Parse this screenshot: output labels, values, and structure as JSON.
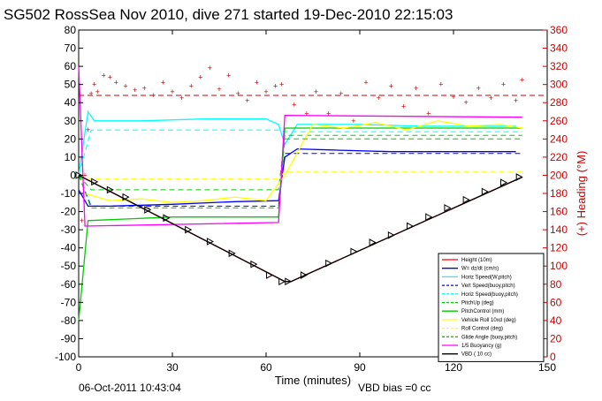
{
  "chart_data": {
    "type": "line",
    "title": "SG502 RossSea Nov 2010, dive 271 started 19-Dec-2010 22:15:03",
    "xlabel": "Time (minutes)",
    "ylabel_right": "(+) Heading (°M)",
    "xlim": [
      0,
      150
    ],
    "ylim": [
      -100,
      80
    ],
    "ylim_right": [
      0,
      360
    ],
    "x_ticks": [
      "0",
      "30",
      "60",
      "90",
      "120",
      "150"
    ],
    "y_ticks": [
      "80",
      "70",
      "60",
      "50",
      "40",
      "30",
      "20",
      "10",
      "0",
      "-10",
      "-20",
      "-30",
      "-40",
      "-50",
      "-60",
      "-70",
      "-80",
      "-90",
      "-100"
    ],
    "y_ticks_right": [
      "360",
      "340",
      "320",
      "300",
      "280",
      "260",
      "240",
      "220",
      "200",
      "180",
      "160",
      "140",
      "120",
      "100",
      "80",
      "60",
      "40",
      "20",
      "0"
    ],
    "footer_left": "06-Oct-2011 10:43:04",
    "footer_right": "VBD bias =0 cc",
    "grid": "none",
    "legend_position": "bottom-right",
    "legend": [
      {
        "name": "Height (10m)",
        "color": "#ff0000",
        "style": "solid"
      },
      {
        "name": "W= dz/dt (cm/s)",
        "color": "#0000ff",
        "style": "solid"
      },
      {
        "name": "Horiz Speed(W,pitch)",
        "color": "#00ffff",
        "style": "solid"
      },
      {
        "name": "Vert Speed(buoy,pitch)",
        "color": "#0000ff",
        "style": "dashed"
      },
      {
        "name": "Horiz Speed(buoy,pitch)",
        "color": "#00ffff",
        "style": "dashed"
      },
      {
        "name": "PitchUp (deg)",
        "color": "#00cc00",
        "style": "dashed"
      },
      {
        "name": "PitchControl (mm)",
        "color": "#00cc00",
        "style": "solid"
      },
      {
        "name": "Vehicle Roll 10xd (deg)",
        "color": "#ffff00",
        "style": "solid"
      },
      {
        "name": "Roll Control (deg)",
        "color": "#ffff00",
        "style": "dashed"
      },
      {
        "name": "Glide Angle (buoy,pitch)",
        "color": "#00cc00",
        "style": "dashed"
      },
      {
        "name": "1/5 Buoyancy (g)",
        "color": "#ff00ff",
        "style": "solid"
      },
      {
        "name": "VBD ( 10 cc)",
        "color": "#000000",
        "style": "solid"
      }
    ],
    "series": [
      {
        "name": "Height (10m)",
        "color": "#ff0000",
        "style": "solid",
        "x": [
          0,
          66,
          68,
          142
        ],
        "y": [
          0,
          -58.5,
          -58.5,
          -1
        ]
      },
      {
        "name": "W= dz/dt (cm/s)",
        "color": "#0000ff",
        "style": "solid",
        "x": [
          0,
          3,
          10,
          30,
          50,
          64,
          66,
          70,
          80,
          100,
          120,
          140
        ],
        "y": [
          -8,
          -17,
          -17,
          -16,
          -14.5,
          -14,
          10,
          14.5,
          14,
          13,
          13,
          13
        ]
      },
      {
        "name": "Horiz Speed(W,pitch)",
        "color": "#00ffff",
        "style": "solid",
        "x": [
          0,
          3,
          5,
          20,
          40,
          60,
          64,
          66,
          70,
          90,
          110,
          140
        ],
        "y": [
          0,
          35,
          30,
          30,
          31,
          31,
          28,
          17,
          28,
          28,
          27,
          27
        ]
      },
      {
        "name": "Vert Speed(buoy,pitch)",
        "color": "#0000ff",
        "style": "dashed",
        "x": [
          0,
          4,
          64,
          66,
          142
        ],
        "y": [
          0,
          -17,
          -17,
          12,
          12
        ]
      },
      {
        "name": "Horiz Speed(buoy,pitch)",
        "color": "#00ffff",
        "style": "dashed",
        "x": [
          0,
          4,
          64,
          66,
          142
        ],
        "y": [
          0,
          25,
          25,
          24,
          24
        ]
      },
      {
        "name": "PitchUp (deg)",
        "color": "#00cc00",
        "style": "dashed",
        "x": [
          0,
          4,
          64,
          66,
          142
        ],
        "y": [
          0,
          -8,
          -8,
          22,
          22
        ]
      },
      {
        "name": "PitchControl (mm)",
        "color": "#00cc00",
        "style": "solid",
        "x": [
          0,
          3,
          30,
          64,
          66,
          142
        ],
        "y": [
          -80,
          -25,
          -23,
          -23,
          26,
          26
        ]
      },
      {
        "name": "Vehicle Roll 10xd (deg)",
        "color": "#ffff00",
        "style": "solid",
        "x": [
          2,
          10,
          20,
          30,
          40,
          50,
          60,
          66,
          75,
          85,
          95,
          105,
          115,
          125,
          135,
          142
        ],
        "y": [
          -10,
          -14,
          -13,
          -15,
          -14,
          -12,
          -14,
          0,
          28,
          26,
          29,
          25,
          30,
          27,
          28,
          26
        ]
      },
      {
        "name": "Roll Control (deg)",
        "color": "#ffff00",
        "style": "dashed",
        "x": [
          0,
          4,
          64,
          66,
          142
        ],
        "y": [
          0,
          -2,
          -2,
          2,
          2
        ]
      },
      {
        "name": "Glide Angle (buoy,pitch)",
        "color": "#00cc00",
        "style": "dashed",
        "x": [
          0,
          4,
          64,
          66,
          142
        ],
        "y": [
          0,
          -18,
          -18,
          20,
          20
        ]
      },
      {
        "name": "1/5 Buoyancy (g)",
        "color": "#ff00ff",
        "style": "solid",
        "x": [
          0,
          2,
          64,
          66,
          142
        ],
        "y": [
          60,
          -28,
          -26,
          33,
          32
        ]
      },
      {
        "name": "VBD ( 10 cc)",
        "color": "#000000",
        "style": "solid",
        "x": [
          0,
          66,
          68,
          142
        ],
        "y": [
          0,
          -58.5,
          -58.5,
          -1
        ]
      }
    ],
    "heading": {
      "axis": "right",
      "color": "#cc0000",
      "mean_line": 288,
      "x": [
        1,
        2,
        3,
        4,
        5,
        6,
        8,
        10,
        12,
        15,
        18,
        21,
        24,
        27,
        30,
        33,
        36,
        39,
        42,
        45,
        48,
        51,
        54,
        57,
        60,
        63,
        65,
        69,
        73,
        76,
        80,
        84,
        88,
        92,
        96,
        100,
        104,
        108,
        112,
        116,
        120,
        124,
        128,
        132,
        136,
        140,
        142
      ],
      "y": [
        150,
        200,
        250,
        290,
        300,
        292,
        310,
        308,
        302,
        298,
        294,
        296,
        288,
        302,
        292,
        285,
        298,
        308,
        318,
        295,
        310,
        290,
        282,
        302,
        292,
        298,
        300,
        278,
        268,
        292,
        268,
        290,
        260,
        302,
        285,
        298,
        276,
        296,
        268,
        300,
        286,
        280,
        296,
        285,
        300,
        282,
        305
      ]
    },
    "markers": {
      "symbol": "triangle-right",
      "x": [
        0,
        5,
        10,
        15,
        22,
        28,
        35,
        42,
        49,
        56,
        61,
        65,
        67,
        72,
        80,
        88,
        94,
        100,
        106,
        112,
        118,
        124,
        130,
        136,
        141
      ],
      "y": [
        0,
        -3.6,
        -8,
        -12,
        -19,
        -23.5,
        -30,
        -36.5,
        -43,
        -49,
        -55,
        -58.5,
        -58.5,
        -55,
        -48.5,
        -42,
        -37,
        -33,
        -28,
        -23,
        -18,
        -13.5,
        -9,
        -4,
        -1
      ]
    }
  }
}
